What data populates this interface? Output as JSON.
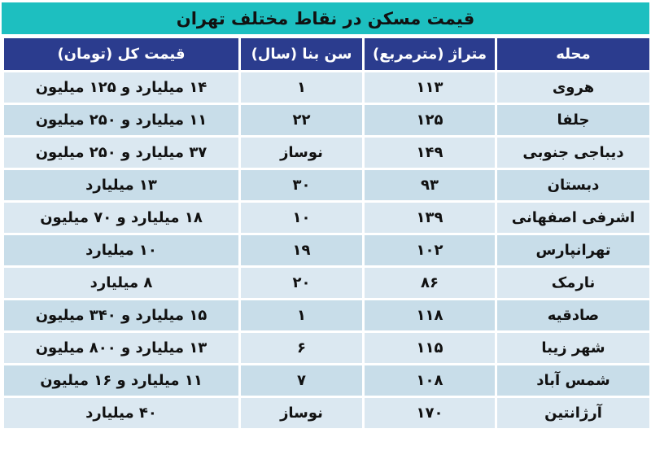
{
  "title": "قیمت مسکن در نقاط مختلف تهران",
  "colors": {
    "title_bg": "#1dbfc0",
    "header_bg": "#2b3c8e",
    "row_light": "#dbe8f1",
    "row_dark": "#c8dde9"
  },
  "headers": [
    "محله",
    "متراژ (مترمربع)",
    "سن بنا (سال)",
    "قیمت کل (تومان)"
  ],
  "rows": [
    [
      "هروی",
      "۱۱۳",
      "۱",
      "۱۴ میلیارد و ۱۲۵ میلیون"
    ],
    [
      "جلفا",
      "۱۲۵",
      "۲۲",
      "۱۱ میلیارد و ۲۵۰ میلیون"
    ],
    [
      "دیباجی جنوبی",
      "۱۴۹",
      "نوساز",
      "۳۷ میلیارد و ۲۵۰ میلیون"
    ],
    [
      "دبستان",
      "۹۳",
      "۳۰",
      "۱۳ میلیارد"
    ],
    [
      "اشرفی اصفهانی",
      "۱۳۹",
      "۱۰",
      "۱۸ میلیارد و ۷۰ میلیون"
    ],
    [
      "تهرانپارس",
      "۱۰۲",
      "۱۹",
      "۱۰ میلیارد"
    ],
    [
      "نارمک",
      "۸۶",
      "۲۰",
      "۸ میلیارد"
    ],
    [
      "صادقیه",
      "۱۱۸",
      "۱",
      "۱۵ میلیارد و ۳۴۰ میلیون"
    ],
    [
      "شهر زیبا",
      "۱۱۵",
      "۶",
      "۱۳ میلیارد و ۸۰۰ میلیون"
    ],
    [
      "شمس آباد",
      "۱۰۸",
      "۷",
      "۱۱ میلیارد و ۱۶ میلیون"
    ],
    [
      "آرژانتین",
      "۱۷۰",
      "نوساز",
      "۴۰ میلیارد"
    ]
  ]
}
